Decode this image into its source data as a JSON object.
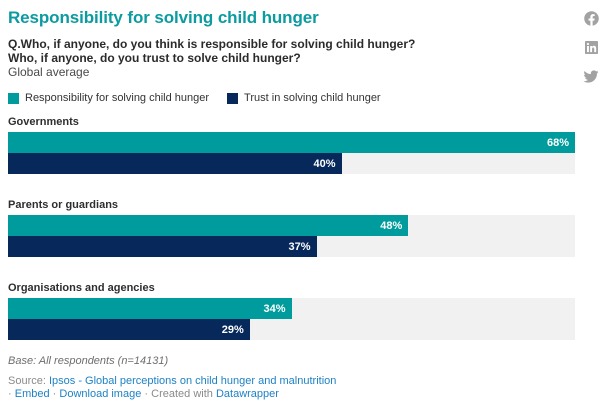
{
  "header": {
    "title": "Responsibility for solving child hunger",
    "subtitle_line1": "Q.Who, if anyone, do you think is responsible for solving child hunger?",
    "subtitle_line2": "Who, if anyone, do you trust to solve child hunger?",
    "description": "Global average"
  },
  "chart_data": {
    "type": "bar",
    "orientation": "horizontal",
    "title": "Responsibility for solving child hunger",
    "categories": [
      "Governments",
      "Parents or guardians",
      "Organisations and agencies"
    ],
    "series": [
      {
        "name": "Responsibility for solving child hunger",
        "color": "#009c9d",
        "values": [
          68,
          48,
          34
        ]
      },
      {
        "name": "Trust in solving child hunger",
        "color": "#06285a",
        "values": [
          40,
          37,
          29
        ]
      }
    ],
    "value_suffix": "%",
    "scale_max": 68,
    "track_color": "#f1f1f1",
    "grid": false,
    "legend_position": "top",
    "value_label_position": "inside-end"
  },
  "footer": {
    "base_note": "Base: All respondents (n=14131)",
    "source_prefix": "Source:",
    "source_link": "Ipsos - Global perceptions on child hunger and malnutrition",
    "separator": "·",
    "embed_label": "Embed",
    "download_label": "Download image",
    "created_with": "Created with",
    "creator_link": "Datawrapper"
  },
  "social": {
    "icons": [
      "facebook",
      "linkedin",
      "twitter"
    ],
    "color": "#a2a2a2"
  },
  "colors": {
    "title": "#0b9ba0",
    "teal": "#009c9d",
    "navy": "#06285a",
    "track": "#f1f1f1",
    "link": "#1d82c5",
    "text_dark": "#2b2b2b",
    "text_gray": "#8a8a8a"
  }
}
